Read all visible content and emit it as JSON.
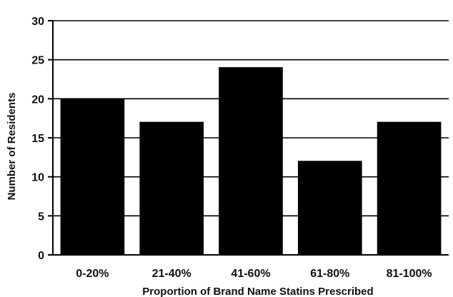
{
  "chart_data": {
    "type": "bar",
    "title": "",
    "xlabel": "Proportion of Brand Name Statins Prescribed",
    "ylabel": "Number of Residents",
    "categories": [
      "0-20%",
      "21-40%",
      "41-60%",
      "61-80%",
      "81-100%"
    ],
    "values": [
      20,
      17,
      24,
      12,
      17
    ],
    "ylim": [
      0,
      30
    ],
    "yticks": [
      0,
      5,
      10,
      15,
      20,
      25,
      30
    ],
    "grid": "horizontal",
    "legend": "none",
    "bar_color": "#000000",
    "grid_color": "#000000"
  }
}
